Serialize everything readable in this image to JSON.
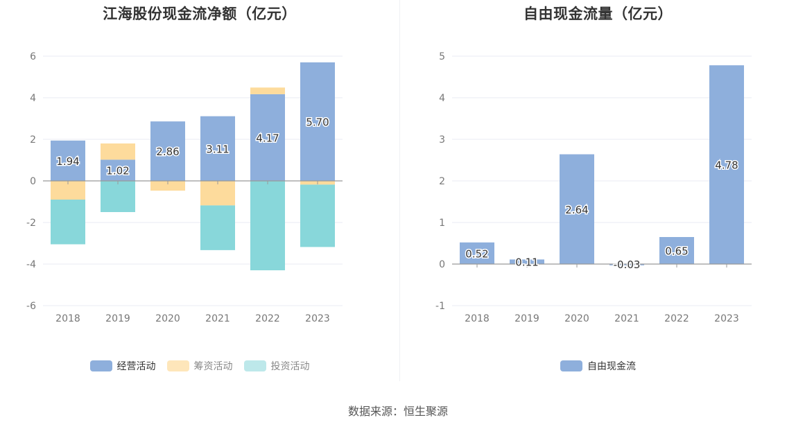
{
  "chart_data": [
    {
      "type": "bar",
      "stacked": true,
      "title": "江海股份现金流净额（亿元）",
      "categories": [
        "2018",
        "2019",
        "2020",
        "2021",
        "2022",
        "2023"
      ],
      "series": [
        {
          "name": "经营活动",
          "color": "#8eafdc",
          "values": [
            1.94,
            1.02,
            2.86,
            3.11,
            4.17,
            5.7
          ],
          "labels": [
            "1.94",
            "1.02",
            "2.86",
            "3.11",
            "4.17",
            "5.70"
          ]
        },
        {
          "name": "筹资活动",
          "color": "#fddb9c",
          "values": [
            -0.9,
            0.78,
            -0.47,
            -1.18,
            0.32,
            -0.18
          ]
        },
        {
          "name": "投资活动",
          "color": "#88d7da",
          "legend_color": "#bde8ea",
          "values": [
            -2.15,
            -1.5,
            0,
            -2.15,
            -4.3,
            -3.0
          ]
        }
      ],
      "y_ticks": [
        "6",
        "4",
        "2",
        "0",
        "-2",
        "-4",
        "-6"
      ],
      "ylim": [
        -6,
        6
      ],
      "grid": true,
      "legend_position": "bottom"
    },
    {
      "type": "bar",
      "title": "自由现金流量（亿元）",
      "categories": [
        "2018",
        "2019",
        "2020",
        "2021",
        "2022",
        "2023"
      ],
      "series": [
        {
          "name": "自由现金流",
          "color": "#8eafdc",
          "values": [
            0.52,
            0.11,
            2.64,
            -0.03,
            0.65,
            4.78
          ],
          "labels": [
            "0.52",
            "0.11",
            "2.64",
            "-0.03",
            "0.65",
            "4.78"
          ]
        }
      ],
      "y_ticks": [
        "5",
        "4",
        "3",
        "2",
        "1",
        "0",
        "-1"
      ],
      "ylim": [
        -1,
        5
      ],
      "grid": true,
      "legend_position": "bottom"
    }
  ],
  "footer": "数据来源：恒生聚源"
}
